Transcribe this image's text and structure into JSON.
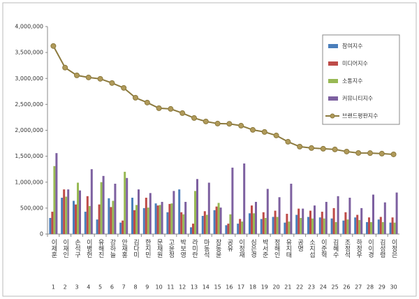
{
  "chart_data": {
    "type": "bar-line",
    "categories": [
      "이제훈",
      "이재인",
      "손석구",
      "이병헌",
      "유해진",
      "강하늘",
      "안재홍",
      "김다미",
      "한지민",
      "문채원",
      "고윤정",
      "박보영",
      "라미란",
      "마동석",
      "장동윤",
      "공유",
      "이정재",
      "심은경",
      "박서준",
      "정해인",
      "유지태",
      "공명",
      "소지섭",
      "이준혁",
      "김혜수",
      "조정석",
      "하정우",
      "이이경",
      "김성령",
      "이정은"
    ],
    "rank_labels": [
      "1",
      "2",
      "3",
      "4",
      "5",
      "6",
      "7",
      "8",
      "9",
      "10",
      "11",
      "12",
      "13",
      "14",
      "15",
      "16",
      "17",
      "18",
      "19",
      "20",
      "21",
      "22",
      "23",
      "24",
      "25",
      "26",
      "27",
      "28",
      "29",
      "30"
    ],
    "series": [
      {
        "name": "참여지수",
        "color": "#4a7ebb",
        "kind": "bar",
        "values": [
          310000,
          700000,
          640000,
          430000,
          280000,
          690000,
          220000,
          700000,
          500000,
          590000,
          420000,
          860000,
          130000,
          350000,
          460000,
          170000,
          200000,
          400000,
          290000,
          330000,
          220000,
          370000,
          330000,
          320000,
          300000,
          260000,
          320000,
          230000,
          280000,
          220000
        ]
      },
      {
        "name": "미디어지수",
        "color": "#be4b48",
        "kind": "bar",
        "values": [
          430000,
          860000,
          570000,
          730000,
          570000,
          520000,
          260000,
          460000,
          700000,
          550000,
          580000,
          420000,
          200000,
          440000,
          530000,
          200000,
          290000,
          550000,
          420000,
          450000,
          390000,
          490000,
          450000,
          430000,
          500000,
          420000,
          370000,
          320000,
          330000,
          320000
        ]
      },
      {
        "name": "소통지수",
        "color": "#98b954",
        "kind": "bar",
        "values": [
          1310000,
          720000,
          990000,
          540000,
          1000000,
          640000,
          1200000,
          560000,
          510000,
          560000,
          590000,
          380000,
          830000,
          370000,
          600000,
          380000,
          240000,
          400000,
          310000,
          330000,
          240000,
          310000,
          300000,
          300000,
          230000,
          280000,
          270000,
          230000,
          230000,
          220000
        ]
      },
      {
        "name": "커뮤니티지수",
        "color": "#7d60a0",
        "kind": "bar",
        "values": [
          1560000,
          860000,
          840000,
          1250000,
          1120000,
          970000,
          1080000,
          860000,
          790000,
          620000,
          830000,
          620000,
          1060000,
          990000,
          510000,
          1280000,
          1360000,
          620000,
          870000,
          710000,
          970000,
          490000,
          550000,
          620000,
          730000,
          700000,
          500000,
          760000,
          610000,
          800000
        ]
      },
      {
        "name": "브랜드평판지수",
        "color": "#8c7a3e",
        "kind": "line",
        "values": [
          3625000,
          3208000,
          3059000,
          3019000,
          2992000,
          2911000,
          2817000,
          2628000,
          2534000,
          2426000,
          2412000,
          2331000,
          2237000,
          2170000,
          2129000,
          2125000,
          2089000,
          2008000,
          1968000,
          1900000,
          1779000,
          1685000,
          1658000,
          1644000,
          1631000,
          1590000,
          1563000,
          1560000,
          1550000,
          1536000
        ]
      }
    ],
    "ylim": [
      0,
      4000000
    ],
    "yticks": [
      0,
      {
        "value": 500000,
        "label": "500,000"
      },
      {
        "value": 1000000,
        "label": "1,000,000"
      },
      {
        "value": 1500000,
        "label": "1,500,000"
      },
      {
        "value": 2000000,
        "label": "2,000,000"
      },
      {
        "value": 2500000,
        "label": "2,500,000"
      },
      {
        "value": 3000000,
        "label": "3,000,000"
      },
      {
        "value": 3500000,
        "label": "3,500,000"
      },
      {
        "value": 4000000,
        "label": "4,000,000"
      }
    ],
    "grid": false
  }
}
